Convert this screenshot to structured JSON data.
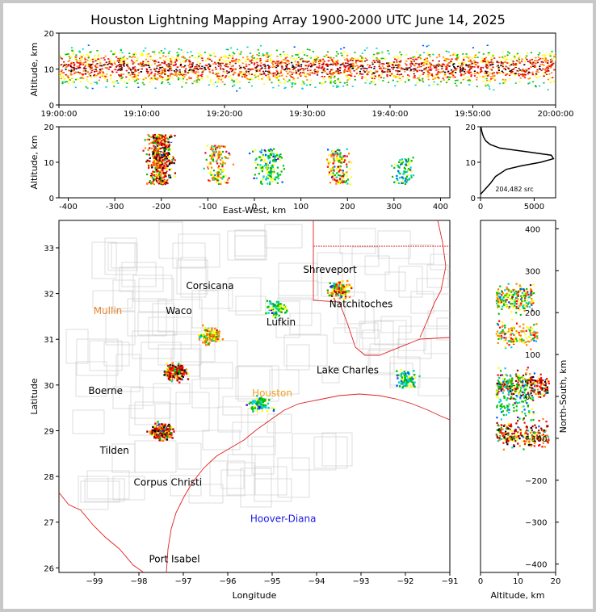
{
  "title": "Houston Lightning Mapping Array 1900-2000 UTC June 14, 2025",
  "panels": {
    "time_height": {
      "ylabel": "Altitude, km",
      "y_ticks": [
        "0",
        "10",
        "20"
      ],
      "x_ticks": [
        "19:00:00",
        "19:10:00",
        "19:20:00",
        "19:30:00",
        "19:40:00",
        "19:50:00",
        "20:00:00"
      ]
    },
    "ew_altitude": {
      "ylabel": "Altitude, km",
      "xlabel": "East-West, km",
      "x_ticks": [
        "-400",
        "-300",
        "-200",
        "-100",
        "0",
        "100",
        "200",
        "300",
        "400"
      ],
      "y_ticks": [
        "0",
        "10",
        "20"
      ]
    },
    "histogram": {
      "annotation": "204,482 src",
      "x_ticks": [
        "0",
        "5000"
      ],
      "y_ticks": [
        "0",
        "10",
        "20"
      ]
    },
    "map": {
      "xlabel": "Longitude",
      "ylabel": "Latitude",
      "x_ticks": [
        "−99",
        "−98",
        "−97",
        "−96",
        "−95",
        "−94",
        "−93",
        "−92",
        "−91"
      ],
      "y_ticks": [
        "26",
        "27",
        "28",
        "29",
        "30",
        "31",
        "32",
        "33"
      ],
      "places": [
        {
          "name": "Shreveport",
          "lon": -93.7,
          "lat": 32.45,
          "color": "#000000"
        },
        {
          "name": "Corsicana",
          "lon": -96.4,
          "lat": 32.1,
          "color": "#000000"
        },
        {
          "name": "Mullin",
          "lon": -98.7,
          "lat": 31.55,
          "color": "#e8862e"
        },
        {
          "name": "Waco",
          "lon": -97.1,
          "lat": 31.55,
          "color": "#000000"
        },
        {
          "name": "Natchitoches",
          "lon": -93.0,
          "lat": 31.7,
          "color": "#000000"
        },
        {
          "name": "Lufkin",
          "lon": -94.8,
          "lat": 31.3,
          "color": "#000000"
        },
        {
          "name": "Lake Charles",
          "lon": -93.3,
          "lat": 30.25,
          "color": "#000000"
        },
        {
          "name": "Boerne",
          "lon": -98.75,
          "lat": 29.8,
          "color": "#000000"
        },
        {
          "name": "Houston",
          "lon": -95.0,
          "lat": 29.75,
          "color": "#f0a020"
        },
        {
          "name": "Tilden",
          "lon": -98.55,
          "lat": 28.5,
          "color": "#000000"
        },
        {
          "name": "Corpus Christi",
          "lon": -97.35,
          "lat": 27.8,
          "color": "#000000"
        },
        {
          "name": "Hoover-Diana",
          "lon": -94.75,
          "lat": 27.0,
          "color": "#1a1ae6"
        },
        {
          "name": "Port Isabel",
          "lon": -97.2,
          "lat": 26.12,
          "color": "#000000"
        }
      ]
    },
    "ns_altitude": {
      "ylabel": "North-South, km",
      "xlabel": "Altitude, km",
      "y_ticks": [
        "400",
        "300",
        "200",
        "100",
        "0",
        "−100",
        "−200",
        "−300",
        "−400"
      ],
      "x_ticks": [
        "0",
        "10",
        "20"
      ]
    }
  },
  "chart_data": {
    "type": "scatter",
    "title": "Houston Lightning Mapping Array 1900-2000 UTC June 14, 2025",
    "total_sources": 204482,
    "time_range_utc": [
      "19:00:00",
      "20:00:00"
    ],
    "altitude_range_km": [
      0,
      20
    ],
    "ew_range_km": [
      -420,
      420
    ],
    "ns_range_km": [
      -420,
      420
    ],
    "lon_range": [
      -99.8,
      -91
    ],
    "lat_range": [
      25.9,
      33.6
    ],
    "colormap": [
      "#5a00c8",
      "#0050ff",
      "#00d0d0",
      "#00c000",
      "#ffff00",
      "#ff8000",
      "#ff0000",
      "#a00000",
      "#000000",
      "#ffffff"
    ],
    "altitude_histogram": {
      "altitude_km": [
        1,
        2,
        4,
        6,
        8,
        9,
        10,
        11,
        12,
        13,
        14,
        15,
        16,
        17,
        18,
        19,
        20
      ],
      "sources": [
        0,
        300,
        900,
        1400,
        2400,
        3800,
        5600,
        6800,
        6600,
        4200,
        1800,
        900,
        500,
        300,
        180,
        100,
        40
      ]
    },
    "clusters": [
      {
        "lon": -97.2,
        "lat": 30.3,
        "ew": -200,
        "ns": 30,
        "alt_top": 18,
        "density": "high"
      },
      {
        "lon": -97.5,
        "lat": 29.0,
        "ew": -210,
        "ns": -90,
        "alt_top": 18,
        "density": "high"
      },
      {
        "lon": -96.4,
        "lat": 31.1,
        "ew": -80,
        "ns": 150,
        "alt_top": 15,
        "density": "medium"
      },
      {
        "lon": -95.3,
        "lat": 29.6,
        "ew": 20,
        "ns": -20,
        "alt_top": 14,
        "density": "low"
      },
      {
        "lon": -94.9,
        "lat": 31.7,
        "ew": 40,
        "ns": 230,
        "alt_top": 13,
        "density": "low"
      },
      {
        "lon": -93.5,
        "lat": 32.1,
        "ew": 180,
        "ns": 240,
        "alt_top": 14,
        "density": "medium"
      },
      {
        "lon": -92.0,
        "lat": 30.15,
        "ew": 320,
        "ns": 30,
        "alt_top": 12,
        "density": "low"
      }
    ]
  }
}
